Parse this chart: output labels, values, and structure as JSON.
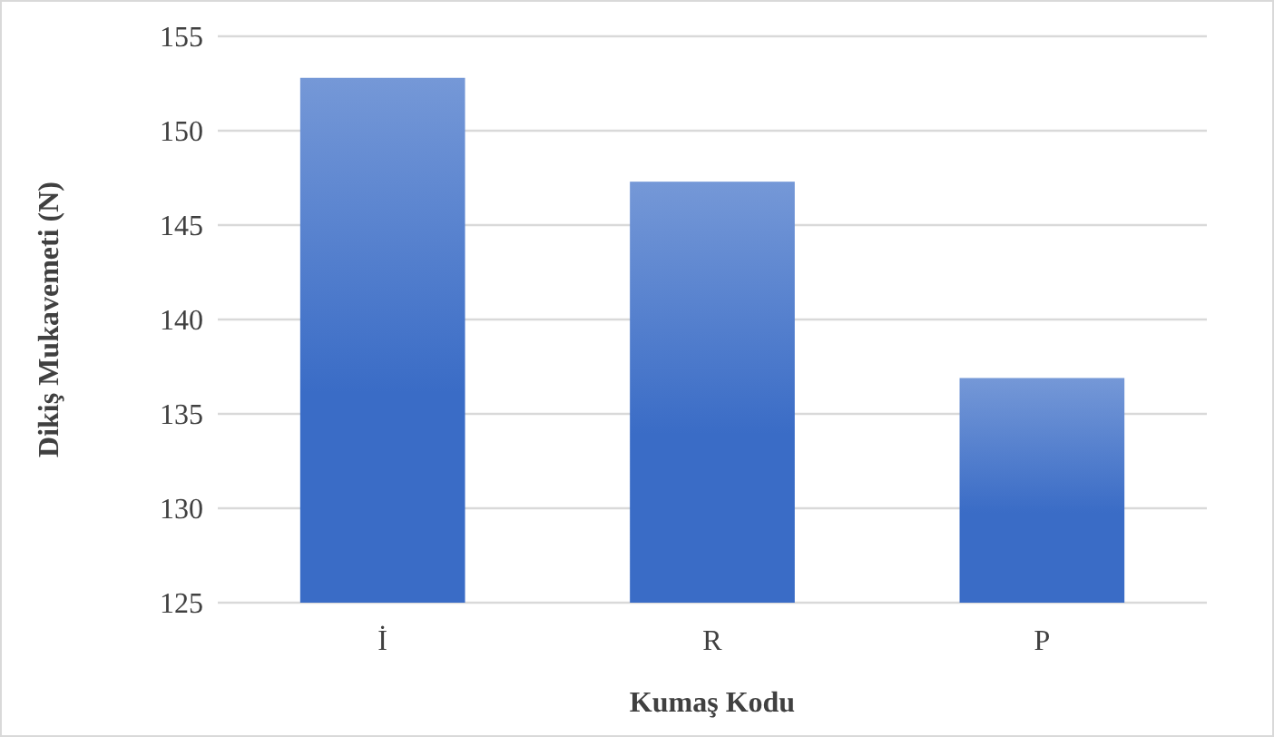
{
  "chart_data": {
    "type": "bar",
    "xlabel": "Kumaş Kodu",
    "ylabel": "Dikiş Mukavemeti (N)",
    "categories": [
      "İ",
      "R",
      "P"
    ],
    "values": [
      152.8,
      147.3,
      136.9
    ],
    "color": "#3a6cc6",
    "ylim": [
      125,
      155
    ],
    "yticks": [
      125,
      130,
      135,
      140,
      145,
      150,
      155
    ],
    "grid": "y"
  }
}
